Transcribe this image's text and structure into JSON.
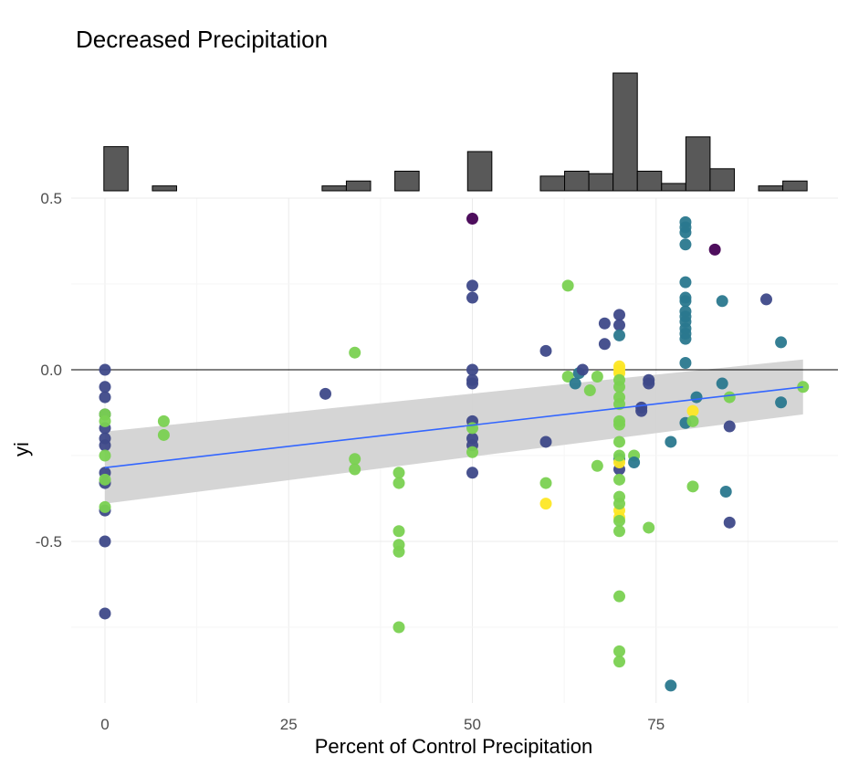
{
  "chart_data": {
    "type": "scatter",
    "title": "Decreased Precipitation",
    "xlabel": "Percent of Control Precipitation",
    "ylabel": "yi",
    "xlim": [
      -2,
      100
    ],
    "ylim": [
      -0.97,
      0.5
    ],
    "x_ticks": [
      0,
      25,
      50,
      75
    ],
    "y_ticks": [
      0.5,
      0.0,
      -0.5
    ],
    "x_tick_labels": [
      "0",
      "25",
      "50",
      "75"
    ],
    "y_tick_labels": [
      "0.5",
      "0.0",
      "-0.5"
    ],
    "grid": true,
    "reference_line_y": 0,
    "trend": {
      "x": [
        0,
        95
      ],
      "y": [
        -0.285,
        -0.05
      ],
      "ci_lower": [
        -0.39,
        -0.13
      ],
      "ci_upper": [
        -0.18,
        0.03
      ],
      "color": "#3366FF"
    },
    "histogram": {
      "bin_width": 3.3,
      "bins": [
        {
          "x": 1.5,
          "count": 9
        },
        {
          "x": 8.1,
          "count": 1
        },
        {
          "x": 31.2,
          "count": 1
        },
        {
          "x": 34.5,
          "count": 2
        },
        {
          "x": 41.1,
          "count": 4
        },
        {
          "x": 51.0,
          "count": 8
        },
        {
          "x": 60.9,
          "count": 3
        },
        {
          "x": 64.2,
          "count": 4
        },
        {
          "x": 67.5,
          "count": 3.5
        },
        {
          "x": 70.8,
          "count": 24
        },
        {
          "x": 74.1,
          "count": 4
        },
        {
          "x": 77.4,
          "count": 1.5
        },
        {
          "x": 80.7,
          "count": 11
        },
        {
          "x": 84.0,
          "count": 4.5
        },
        {
          "x": 90.6,
          "count": 1
        },
        {
          "x": 93.9,
          "count": 2
        }
      ]
    },
    "points": [
      {
        "x": 0,
        "y": 0.0,
        "c": "#3e4989"
      },
      {
        "x": 0,
        "y": -0.05,
        "c": "#3e4989"
      },
      {
        "x": 0,
        "y": -0.08,
        "c": "#3e4989"
      },
      {
        "x": 0,
        "y": -0.13,
        "c": "#3e4989"
      },
      {
        "x": 0,
        "y": -0.17,
        "c": "#3e4989"
      },
      {
        "x": 0,
        "y": -0.2,
        "c": "#3e4989"
      },
      {
        "x": 0,
        "y": -0.22,
        "c": "#3e4989"
      },
      {
        "x": 0,
        "y": -0.3,
        "c": "#3e4989"
      },
      {
        "x": 0,
        "y": -0.33,
        "c": "#3e4989"
      },
      {
        "x": 0,
        "y": -0.41,
        "c": "#3e4989"
      },
      {
        "x": 0,
        "y": -0.5,
        "c": "#3e4989"
      },
      {
        "x": 0,
        "y": -0.71,
        "c": "#3e4989"
      },
      {
        "x": 0,
        "y": -0.13,
        "c": "#7ad151"
      },
      {
        "x": 0,
        "y": -0.15,
        "c": "#7ad151"
      },
      {
        "x": 0,
        "y": -0.25,
        "c": "#7ad151"
      },
      {
        "x": 0,
        "y": -0.32,
        "c": "#7ad151"
      },
      {
        "x": 0,
        "y": -0.4,
        "c": "#7ad151"
      },
      {
        "x": 8,
        "y": -0.15,
        "c": "#7ad151"
      },
      {
        "x": 8,
        "y": -0.19,
        "c": "#7ad151"
      },
      {
        "x": 30,
        "y": -0.07,
        "c": "#3e4989"
      },
      {
        "x": 34,
        "y": 0.05,
        "c": "#7ad151"
      },
      {
        "x": 34,
        "y": -0.26,
        "c": "#7ad151"
      },
      {
        "x": 34,
        "y": -0.29,
        "c": "#7ad151"
      },
      {
        "x": 40,
        "y": -0.3,
        "c": "#7ad151"
      },
      {
        "x": 40,
        "y": -0.33,
        "c": "#7ad151"
      },
      {
        "x": 40,
        "y": -0.47,
        "c": "#7ad151"
      },
      {
        "x": 40,
        "y": -0.51,
        "c": "#7ad151"
      },
      {
        "x": 40,
        "y": -0.53,
        "c": "#7ad151"
      },
      {
        "x": 40,
        "y": -0.75,
        "c": "#7ad151"
      },
      {
        "x": 50,
        "y": 0.44,
        "c": "#440154"
      },
      {
        "x": 50,
        "y": 0.245,
        "c": "#3e4989"
      },
      {
        "x": 50,
        "y": 0.21,
        "c": "#3e4989"
      },
      {
        "x": 50,
        "y": 0.0,
        "c": "#3e4989"
      },
      {
        "x": 50,
        "y": -0.03,
        "c": "#3e4989"
      },
      {
        "x": 50,
        "y": -0.04,
        "c": "#3e4989"
      },
      {
        "x": 50,
        "y": -0.15,
        "c": "#3e4989"
      },
      {
        "x": 50,
        "y": -0.2,
        "c": "#3e4989"
      },
      {
        "x": 50,
        "y": -0.22,
        "c": "#3e4989"
      },
      {
        "x": 50,
        "y": -0.3,
        "c": "#3e4989"
      },
      {
        "x": 50,
        "y": -0.17,
        "c": "#7ad151"
      },
      {
        "x": 50,
        "y": -0.24,
        "c": "#7ad151"
      },
      {
        "x": 60,
        "y": 0.055,
        "c": "#3e4989"
      },
      {
        "x": 60,
        "y": -0.21,
        "c": "#3e4989"
      },
      {
        "x": 60,
        "y": -0.33,
        "c": "#7ad151"
      },
      {
        "x": 60,
        "y": -0.39,
        "c": "#fde725"
      },
      {
        "x": 63,
        "y": 0.245,
        "c": "#7ad151"
      },
      {
        "x": 63,
        "y": -0.02,
        "c": "#7ad151"
      },
      {
        "x": 64,
        "y": -0.04,
        "c": "#2a788e"
      },
      {
        "x": 64.5,
        "y": -0.01,
        "c": "#2a788e"
      },
      {
        "x": 65,
        "y": 0.0,
        "c": "#3e4989"
      },
      {
        "x": 66,
        "y": -0.06,
        "c": "#7ad151"
      },
      {
        "x": 67,
        "y": -0.02,
        "c": "#7ad151"
      },
      {
        "x": 67,
        "y": -0.28,
        "c": "#7ad151"
      },
      {
        "x": 68,
        "y": 0.135,
        "c": "#3e4989"
      },
      {
        "x": 68,
        "y": 0.075,
        "c": "#3e4989"
      },
      {
        "x": 70,
        "y": 0.16,
        "c": "#3e4989"
      },
      {
        "x": 70,
        "y": 0.13,
        "c": "#3e4989"
      },
      {
        "x": 70,
        "y": 0.1,
        "c": "#2a788e"
      },
      {
        "x": 70,
        "y": -0.26,
        "c": "#2a788e"
      },
      {
        "x": 70,
        "y": -0.29,
        "c": "#3e4989"
      },
      {
        "x": 70,
        "y": 0.01,
        "c": "#fde725"
      },
      {
        "x": 70,
        "y": 0.0,
        "c": "#fde725"
      },
      {
        "x": 70,
        "y": -0.01,
        "c": "#fde725"
      },
      {
        "x": 70,
        "y": -0.27,
        "c": "#fde725"
      },
      {
        "x": 70,
        "y": -0.41,
        "c": "#fde725"
      },
      {
        "x": 70,
        "y": -0.43,
        "c": "#fde725"
      },
      {
        "x": 70,
        "y": -0.03,
        "c": "#7ad151"
      },
      {
        "x": 70,
        "y": -0.05,
        "c": "#7ad151"
      },
      {
        "x": 70,
        "y": -0.08,
        "c": "#7ad151"
      },
      {
        "x": 70,
        "y": -0.1,
        "c": "#7ad151"
      },
      {
        "x": 70,
        "y": -0.15,
        "c": "#7ad151"
      },
      {
        "x": 70,
        "y": -0.16,
        "c": "#7ad151"
      },
      {
        "x": 70,
        "y": -0.21,
        "c": "#7ad151"
      },
      {
        "x": 70,
        "y": -0.25,
        "c": "#7ad151"
      },
      {
        "x": 70,
        "y": -0.32,
        "c": "#7ad151"
      },
      {
        "x": 70,
        "y": -0.37,
        "c": "#7ad151"
      },
      {
        "x": 70,
        "y": -0.39,
        "c": "#7ad151"
      },
      {
        "x": 70,
        "y": -0.44,
        "c": "#7ad151"
      },
      {
        "x": 70,
        "y": -0.47,
        "c": "#7ad151"
      },
      {
        "x": 70,
        "y": -0.66,
        "c": "#7ad151"
      },
      {
        "x": 70,
        "y": -0.82,
        "c": "#7ad151"
      },
      {
        "x": 70,
        "y": -0.85,
        "c": "#7ad151"
      },
      {
        "x": 72,
        "y": -0.25,
        "c": "#7ad151"
      },
      {
        "x": 72,
        "y": -0.27,
        "c": "#2a788e"
      },
      {
        "x": 73,
        "y": -0.11,
        "c": "#3e4989"
      },
      {
        "x": 73,
        "y": -0.12,
        "c": "#3e4989"
      },
      {
        "x": 74,
        "y": -0.03,
        "c": "#3e4989"
      },
      {
        "x": 74,
        "y": -0.04,
        "c": "#3e4989"
      },
      {
        "x": 74,
        "y": -0.46,
        "c": "#7ad151"
      },
      {
        "x": 77,
        "y": -0.21,
        "c": "#2a788e"
      },
      {
        "x": 77,
        "y": -0.92,
        "c": "#2a788e"
      },
      {
        "x": 79,
        "y": 0.43,
        "c": "#2a788e"
      },
      {
        "x": 79,
        "y": 0.415,
        "c": "#2a788e"
      },
      {
        "x": 79,
        "y": 0.4,
        "c": "#2a788e"
      },
      {
        "x": 79,
        "y": 0.365,
        "c": "#2a788e"
      },
      {
        "x": 79,
        "y": 0.255,
        "c": "#2a788e"
      },
      {
        "x": 79,
        "y": 0.21,
        "c": "#2a788e"
      },
      {
        "x": 79,
        "y": 0.2,
        "c": "#2a788e"
      },
      {
        "x": 79,
        "y": 0.17,
        "c": "#2a788e"
      },
      {
        "x": 79,
        "y": 0.155,
        "c": "#2a788e"
      },
      {
        "x": 79,
        "y": 0.14,
        "c": "#2a788e"
      },
      {
        "x": 79,
        "y": 0.12,
        "c": "#2a788e"
      },
      {
        "x": 79,
        "y": 0.105,
        "c": "#2a788e"
      },
      {
        "x": 79,
        "y": 0.09,
        "c": "#2a788e"
      },
      {
        "x": 79,
        "y": 0.02,
        "c": "#2a788e"
      },
      {
        "x": 79,
        "y": -0.155,
        "c": "#2a788e"
      },
      {
        "x": 80,
        "y": -0.12,
        "c": "#fde725"
      },
      {
        "x": 80,
        "y": -0.15,
        "c": "#7ad151"
      },
      {
        "x": 80,
        "y": -0.34,
        "c": "#7ad151"
      },
      {
        "x": 80.5,
        "y": -0.08,
        "c": "#2a788e"
      },
      {
        "x": 83,
        "y": 0.35,
        "c": "#440154"
      },
      {
        "x": 84,
        "y": 0.2,
        "c": "#2a788e"
      },
      {
        "x": 84,
        "y": -0.04,
        "c": "#2a788e"
      },
      {
        "x": 84.5,
        "y": -0.355,
        "c": "#2a788e"
      },
      {
        "x": 85,
        "y": -0.08,
        "c": "#7ad151"
      },
      {
        "x": 85,
        "y": -0.165,
        "c": "#3e4989"
      },
      {
        "x": 85,
        "y": -0.445,
        "c": "#3e4989"
      },
      {
        "x": 90,
        "y": 0.205,
        "c": "#3e4989"
      },
      {
        "x": 92,
        "y": 0.08,
        "c": "#2a788e"
      },
      {
        "x": 92,
        "y": -0.095,
        "c": "#2a788e"
      },
      {
        "x": 95,
        "y": -0.05,
        "c": "#7ad151"
      }
    ]
  }
}
